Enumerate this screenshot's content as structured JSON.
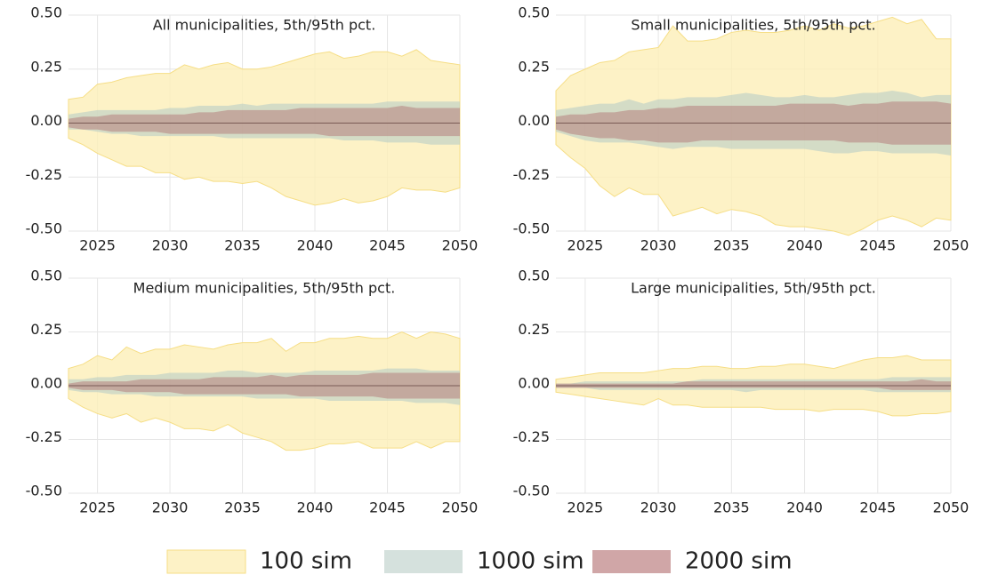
{
  "chart_data": [
    {
      "type": "band",
      "title": "All municipalities, 5th/95th pct.",
      "x": [
        2023,
        2024,
        2025,
        2026,
        2027,
        2028,
        2029,
        2030,
        2031,
        2032,
        2033,
        2034,
        2035,
        2036,
        2037,
        2038,
        2039,
        2040,
        2041,
        2042,
        2043,
        2044,
        2045,
        2046,
        2047,
        2048,
        2049,
        2050
      ],
      "xlim": [
        2023,
        2050
      ],
      "xticks": [
        2025,
        2030,
        2035,
        2040,
        2045,
        2050
      ],
      "ylim": [
        -0.5,
        0.5
      ],
      "yticks": [
        {
          "value": -0.5,
          "label": "-0.50"
        },
        {
          "value": -0.25,
          "label": "-0.25"
        },
        {
          "value": 0,
          "label": "0.00"
        },
        {
          "value": 0.25,
          "label": "0.25"
        },
        {
          "value": 0.5,
          "label": "0.50"
        }
      ],
      "grid": true,
      "hline": 0,
      "series": [
        {
          "high": [
            0.11,
            0.12,
            0.18,
            0.19,
            0.21,
            0.22,
            0.23,
            0.23,
            0.27,
            0.25,
            0.27,
            0.28,
            0.25,
            0.25,
            0.26,
            0.28,
            0.3,
            0.32,
            0.33,
            0.3,
            0.31,
            0.33,
            0.33,
            0.31,
            0.34,
            0.29,
            0.28,
            0.27
          ],
          "low": [
            -0.07,
            -0.1,
            -0.14,
            -0.17,
            -0.2,
            -0.2,
            -0.23,
            -0.23,
            -0.26,
            -0.25,
            -0.27,
            -0.27,
            -0.28,
            -0.27,
            -0.3,
            -0.34,
            -0.36,
            -0.38,
            -0.37,
            -0.35,
            -0.37,
            -0.36,
            -0.34,
            -0.3,
            -0.31,
            -0.31,
            -0.32,
            -0.3
          ]
        },
        {
          "high": [
            0.04,
            0.05,
            0.06,
            0.06,
            0.06,
            0.06,
            0.06,
            0.07,
            0.07,
            0.08,
            0.08,
            0.08,
            0.09,
            0.08,
            0.09,
            0.09,
            0.09,
            0.09,
            0.09,
            0.09,
            0.09,
            0.09,
            0.1,
            0.1,
            0.1,
            0.1,
            0.1,
            0.1
          ],
          "low": [
            -0.03,
            -0.03,
            -0.04,
            -0.05,
            -0.05,
            -0.06,
            -0.06,
            -0.06,
            -0.06,
            -0.06,
            -0.06,
            -0.07,
            -0.07,
            -0.07,
            -0.07,
            -0.07,
            -0.07,
            -0.07,
            -0.07,
            -0.08,
            -0.08,
            -0.08,
            -0.09,
            -0.09,
            -0.09,
            -0.1,
            -0.1,
            -0.1
          ]
        },
        {
          "high": [
            0.02,
            0.03,
            0.03,
            0.04,
            0.04,
            0.04,
            0.04,
            0.04,
            0.04,
            0.05,
            0.05,
            0.06,
            0.06,
            0.06,
            0.06,
            0.06,
            0.07,
            0.07,
            0.07,
            0.07,
            0.07,
            0.07,
            0.07,
            0.08,
            0.07,
            0.07,
            0.07,
            0.07
          ],
          "low": [
            -0.02,
            -0.03,
            -0.03,
            -0.04,
            -0.04,
            -0.04,
            -0.04,
            -0.05,
            -0.05,
            -0.05,
            -0.05,
            -0.05,
            -0.05,
            -0.05,
            -0.05,
            -0.05,
            -0.05,
            -0.05,
            -0.06,
            -0.06,
            -0.06,
            -0.06,
            -0.06,
            -0.06,
            -0.06,
            -0.06,
            -0.06,
            -0.06
          ]
        }
      ]
    },
    {
      "type": "band",
      "title": "Small municipalities, 5th/95th pct.",
      "x": [
        2023,
        2024,
        2025,
        2026,
        2027,
        2028,
        2029,
        2030,
        2031,
        2032,
        2033,
        2034,
        2035,
        2036,
        2037,
        2038,
        2039,
        2040,
        2041,
        2042,
        2043,
        2044,
        2045,
        2046,
        2047,
        2048,
        2049,
        2050
      ],
      "xlim": [
        2023,
        2050
      ],
      "xticks": [
        2025,
        2030,
        2035,
        2040,
        2045,
        2050
      ],
      "ylim": [
        -0.5,
        0.5
      ],
      "yticks": [
        {
          "value": -0.5,
          "label": "-0.50"
        },
        {
          "value": -0.25,
          "label": "-0.25"
        },
        {
          "value": 0,
          "label": "0.00"
        },
        {
          "value": 0.25,
          "label": "0.25"
        },
        {
          "value": 0.5,
          "label": "0.50"
        }
      ],
      "grid": true,
      "hline": 0,
      "series": [
        {
          "high": [
            0.15,
            0.22,
            0.25,
            0.28,
            0.29,
            0.33,
            0.34,
            0.35,
            0.45,
            0.38,
            0.38,
            0.39,
            0.42,
            0.43,
            0.42,
            0.42,
            0.43,
            0.45,
            0.43,
            0.46,
            0.44,
            0.45,
            0.47,
            0.49,
            0.46,
            0.48,
            0.39,
            0.39
          ],
          "low": [
            -0.1,
            -0.16,
            -0.21,
            -0.29,
            -0.34,
            -0.3,
            -0.33,
            -0.33,
            -0.43,
            -0.41,
            -0.39,
            -0.42,
            -0.4,
            -0.41,
            -0.43,
            -0.47,
            -0.48,
            -0.48,
            -0.49,
            -0.5,
            -0.52,
            -0.49,
            -0.45,
            -0.43,
            -0.45,
            -0.48,
            -0.44,
            -0.45
          ]
        },
        {
          "high": [
            0.06,
            0.07,
            0.08,
            0.09,
            0.09,
            0.11,
            0.09,
            0.11,
            0.11,
            0.12,
            0.12,
            0.12,
            0.13,
            0.14,
            0.13,
            0.12,
            0.12,
            0.13,
            0.12,
            0.12,
            0.13,
            0.14,
            0.14,
            0.15,
            0.14,
            0.12,
            0.13,
            0.13
          ],
          "low": [
            -0.04,
            -0.06,
            -0.08,
            -0.09,
            -0.09,
            -0.09,
            -0.1,
            -0.11,
            -0.12,
            -0.11,
            -0.11,
            -0.11,
            -0.12,
            -0.12,
            -0.12,
            -0.12,
            -0.12,
            -0.12,
            -0.13,
            -0.14,
            -0.14,
            -0.13,
            -0.13,
            -0.14,
            -0.14,
            -0.14,
            -0.14,
            -0.15
          ]
        },
        {
          "high": [
            0.03,
            0.04,
            0.04,
            0.05,
            0.05,
            0.06,
            0.06,
            0.07,
            0.07,
            0.08,
            0.08,
            0.08,
            0.08,
            0.08,
            0.08,
            0.08,
            0.09,
            0.09,
            0.09,
            0.09,
            0.08,
            0.09,
            0.09,
            0.1,
            0.1,
            0.1,
            0.1,
            0.09
          ],
          "low": [
            -0.03,
            -0.05,
            -0.06,
            -0.07,
            -0.07,
            -0.08,
            -0.08,
            -0.09,
            -0.09,
            -0.09,
            -0.08,
            -0.08,
            -0.08,
            -0.08,
            -0.08,
            -0.08,
            -0.08,
            -0.08,
            -0.08,
            -0.08,
            -0.09,
            -0.09,
            -0.09,
            -0.1,
            -0.1,
            -0.1,
            -0.1,
            -0.1
          ]
        }
      ]
    },
    {
      "type": "band",
      "title": "Medium municipalities, 5th/95th pct.",
      "x": [
        2023,
        2024,
        2025,
        2026,
        2027,
        2028,
        2029,
        2030,
        2031,
        2032,
        2033,
        2034,
        2035,
        2036,
        2037,
        2038,
        2039,
        2040,
        2041,
        2042,
        2043,
        2044,
        2045,
        2046,
        2047,
        2048,
        2049,
        2050
      ],
      "xlim": [
        2023,
        2050
      ],
      "xticks": [
        2025,
        2030,
        2035,
        2040,
        2045,
        2050
      ],
      "ylim": [
        -0.5,
        0.5
      ],
      "yticks": [
        {
          "value": -0.5,
          "label": "-0.50"
        },
        {
          "value": -0.25,
          "label": "-0.25"
        },
        {
          "value": 0,
          "label": "0.00"
        },
        {
          "value": 0.25,
          "label": "0.25"
        },
        {
          "value": 0.5,
          "label": "0.50"
        }
      ],
      "grid": true,
      "hline": 0,
      "series": [
        {
          "high": [
            0.08,
            0.1,
            0.14,
            0.12,
            0.18,
            0.15,
            0.17,
            0.17,
            0.19,
            0.18,
            0.17,
            0.19,
            0.2,
            0.2,
            0.22,
            0.16,
            0.2,
            0.2,
            0.22,
            0.22,
            0.23,
            0.22,
            0.22,
            0.25,
            0.22,
            0.25,
            0.24,
            0.22
          ],
          "low": [
            -0.06,
            -0.1,
            -0.13,
            -0.15,
            -0.13,
            -0.17,
            -0.15,
            -0.17,
            -0.2,
            -0.2,
            -0.21,
            -0.18,
            -0.22,
            -0.24,
            -0.26,
            -0.3,
            -0.3,
            -0.29,
            -0.27,
            -0.27,
            -0.26,
            -0.29,
            -0.29,
            -0.29,
            -0.26,
            -0.29,
            -0.26,
            -0.26
          ]
        },
        {
          "high": [
            0.03,
            0.03,
            0.04,
            0.04,
            0.05,
            0.05,
            0.05,
            0.06,
            0.06,
            0.06,
            0.06,
            0.07,
            0.07,
            0.06,
            0.06,
            0.06,
            0.06,
            0.07,
            0.07,
            0.07,
            0.07,
            0.07,
            0.08,
            0.08,
            0.08,
            0.07,
            0.07,
            0.07
          ],
          "low": [
            -0.02,
            -0.03,
            -0.03,
            -0.04,
            -0.04,
            -0.04,
            -0.05,
            -0.05,
            -0.05,
            -0.05,
            -0.05,
            -0.05,
            -0.05,
            -0.06,
            -0.06,
            -0.06,
            -0.06,
            -0.06,
            -0.07,
            -0.07,
            -0.07,
            -0.07,
            -0.07,
            -0.07,
            -0.08,
            -0.08,
            -0.08,
            -0.09
          ]
        },
        {
          "high": [
            0.01,
            0.02,
            0.02,
            0.02,
            0.02,
            0.03,
            0.03,
            0.03,
            0.03,
            0.03,
            0.04,
            0.04,
            0.04,
            0.04,
            0.05,
            0.04,
            0.05,
            0.05,
            0.05,
            0.05,
            0.05,
            0.06,
            0.06,
            0.06,
            0.06,
            0.06,
            0.06,
            0.06
          ],
          "low": [
            -0.01,
            -0.02,
            -0.02,
            -0.02,
            -0.03,
            -0.03,
            -0.03,
            -0.03,
            -0.04,
            -0.04,
            -0.04,
            -0.04,
            -0.04,
            -0.04,
            -0.04,
            -0.04,
            -0.05,
            -0.05,
            -0.05,
            -0.05,
            -0.05,
            -0.05,
            -0.06,
            -0.06,
            -0.06,
            -0.06,
            -0.06,
            -0.06
          ]
        }
      ]
    },
    {
      "type": "band",
      "title": "Large municipalities, 5th/95th pct.",
      "x": [
        2023,
        2024,
        2025,
        2026,
        2027,
        2028,
        2029,
        2030,
        2031,
        2032,
        2033,
        2034,
        2035,
        2036,
        2037,
        2038,
        2039,
        2040,
        2041,
        2042,
        2043,
        2044,
        2045,
        2046,
        2047,
        2048,
        2049,
        2050
      ],
      "xlim": [
        2023,
        2050
      ],
      "xticks": [
        2025,
        2030,
        2035,
        2040,
        2045,
        2050
      ],
      "ylim": [
        -0.5,
        0.5
      ],
      "yticks": [
        {
          "value": -0.5,
          "label": "-0.50"
        },
        {
          "value": -0.25,
          "label": "-0.25"
        },
        {
          "value": 0,
          "label": "0.00"
        },
        {
          "value": 0.25,
          "label": "0.25"
        },
        {
          "value": 0.5,
          "label": "0.50"
        }
      ],
      "grid": true,
      "hline": 0,
      "series": [
        {
          "high": [
            0.03,
            0.04,
            0.05,
            0.06,
            0.06,
            0.06,
            0.06,
            0.07,
            0.08,
            0.08,
            0.09,
            0.09,
            0.08,
            0.08,
            0.09,
            0.09,
            0.1,
            0.1,
            0.09,
            0.08,
            0.1,
            0.12,
            0.13,
            0.13,
            0.14,
            0.12,
            0.12,
            0.12
          ],
          "low": [
            -0.03,
            -0.04,
            -0.05,
            -0.06,
            -0.07,
            -0.08,
            -0.09,
            -0.06,
            -0.09,
            -0.09,
            -0.1,
            -0.1,
            -0.1,
            -0.1,
            -0.1,
            -0.11,
            -0.11,
            -0.11,
            -0.12,
            -0.11,
            -0.11,
            -0.11,
            -0.12,
            -0.14,
            -0.14,
            -0.13,
            -0.13,
            -0.12
          ]
        },
        {
          "high": [
            0.01,
            0.01,
            0.02,
            0.02,
            0.02,
            0.02,
            0.02,
            0.02,
            0.02,
            0.02,
            0.03,
            0.03,
            0.03,
            0.03,
            0.03,
            0.03,
            0.03,
            0.03,
            0.03,
            0.03,
            0.03,
            0.03,
            0.03,
            0.04,
            0.04,
            0.04,
            0.04,
            0.04
          ],
          "low": [
            -0.01,
            -0.01,
            -0.01,
            -0.02,
            -0.02,
            -0.02,
            -0.02,
            -0.02,
            -0.02,
            -0.02,
            -0.02,
            -0.02,
            -0.02,
            -0.03,
            -0.02,
            -0.02,
            -0.02,
            -0.02,
            -0.02,
            -0.02,
            -0.02,
            -0.02,
            -0.03,
            -0.03,
            -0.03,
            -0.03,
            -0.03,
            -0.03
          ]
        },
        {
          "high": [
            0.01,
            0.01,
            0.01,
            0.01,
            0.01,
            0.01,
            0.01,
            0.01,
            0.01,
            0.02,
            0.02,
            0.02,
            0.02,
            0.02,
            0.02,
            0.02,
            0.02,
            0.02,
            0.02,
            0.02,
            0.02,
            0.02,
            0.02,
            0.02,
            0.02,
            0.03,
            0.02,
            0.02
          ],
          "low": [
            -0.01,
            -0.01,
            -0.01,
            -0.01,
            -0.01,
            -0.01,
            -0.01,
            -0.01,
            -0.01,
            -0.01,
            -0.01,
            -0.01,
            -0.01,
            -0.01,
            -0.01,
            -0.01,
            -0.01,
            -0.01,
            -0.01,
            -0.01,
            -0.01,
            -0.01,
            -0.01,
            -0.02,
            -0.02,
            -0.02,
            -0.02,
            -0.02
          ]
        }
      ]
    }
  ],
  "legend": [
    {
      "name": "100 sim",
      "color": "#fdefb8"
    },
    {
      "name": "1000 sim",
      "color": "#b9cdc6"
    },
    {
      "name": "2000 sim",
      "color": "#b06a6c"
    }
  ]
}
